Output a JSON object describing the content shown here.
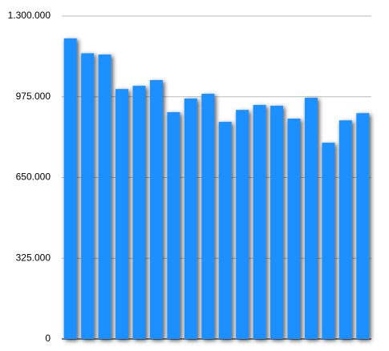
{
  "chart_data": {
    "type": "bar",
    "categories": [
      null,
      null,
      null,
      null,
      null,
      null,
      null,
      null,
      null,
      null,
      null,
      null,
      null,
      null,
      null,
      null,
      null,
      null
    ],
    "values": [
      1210000,
      1150000,
      1145000,
      1006000,
      1019000,
      1042000,
      913000,
      968000,
      987000,
      874000,
      922000,
      942000,
      939000,
      887000,
      971000,
      790000,
      880000,
      909000
    ],
    "color": "#1e90ff",
    "ylim": [
      0,
      1300000
    ],
    "yticks": [
      0,
      {
        "value": 325000,
        "label": "325.000"
      },
      {
        "value": 650000,
        "label": "650.000"
      },
      {
        "value": 975000,
        "label": "975.000"
      },
      {
        "value": 1300000,
        "label": "1.300.000"
      }
    ],
    "grid": true
  }
}
